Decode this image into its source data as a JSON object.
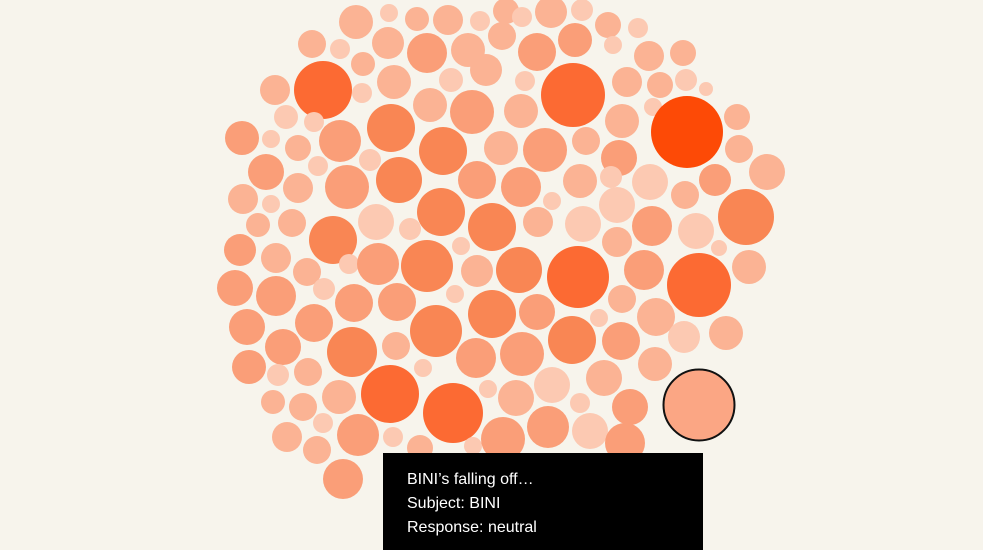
{
  "chart_data": {
    "type": "bubble-cluster",
    "title": "",
    "highlighted": {
      "text": "BINI’s falling off…",
      "subject": "BINI",
      "response": "neutral"
    },
    "colors": {
      "background": "#f7f4ec",
      "shades": [
        "#fcc9b2",
        "#fbb394",
        "#fa9e78",
        "#f98654",
        "#fc6a33",
        "#fd4a06"
      ],
      "highlight_fill": "#fba684",
      "highlight_stroke": "#111111"
    }
  },
  "tooltip": {
    "line1": "BINI’s falling off…",
    "line2_label": "Subject: ",
    "line2_value": "BINI",
    "line3_label": "Response: ",
    "line3_value": "neutral"
  }
}
